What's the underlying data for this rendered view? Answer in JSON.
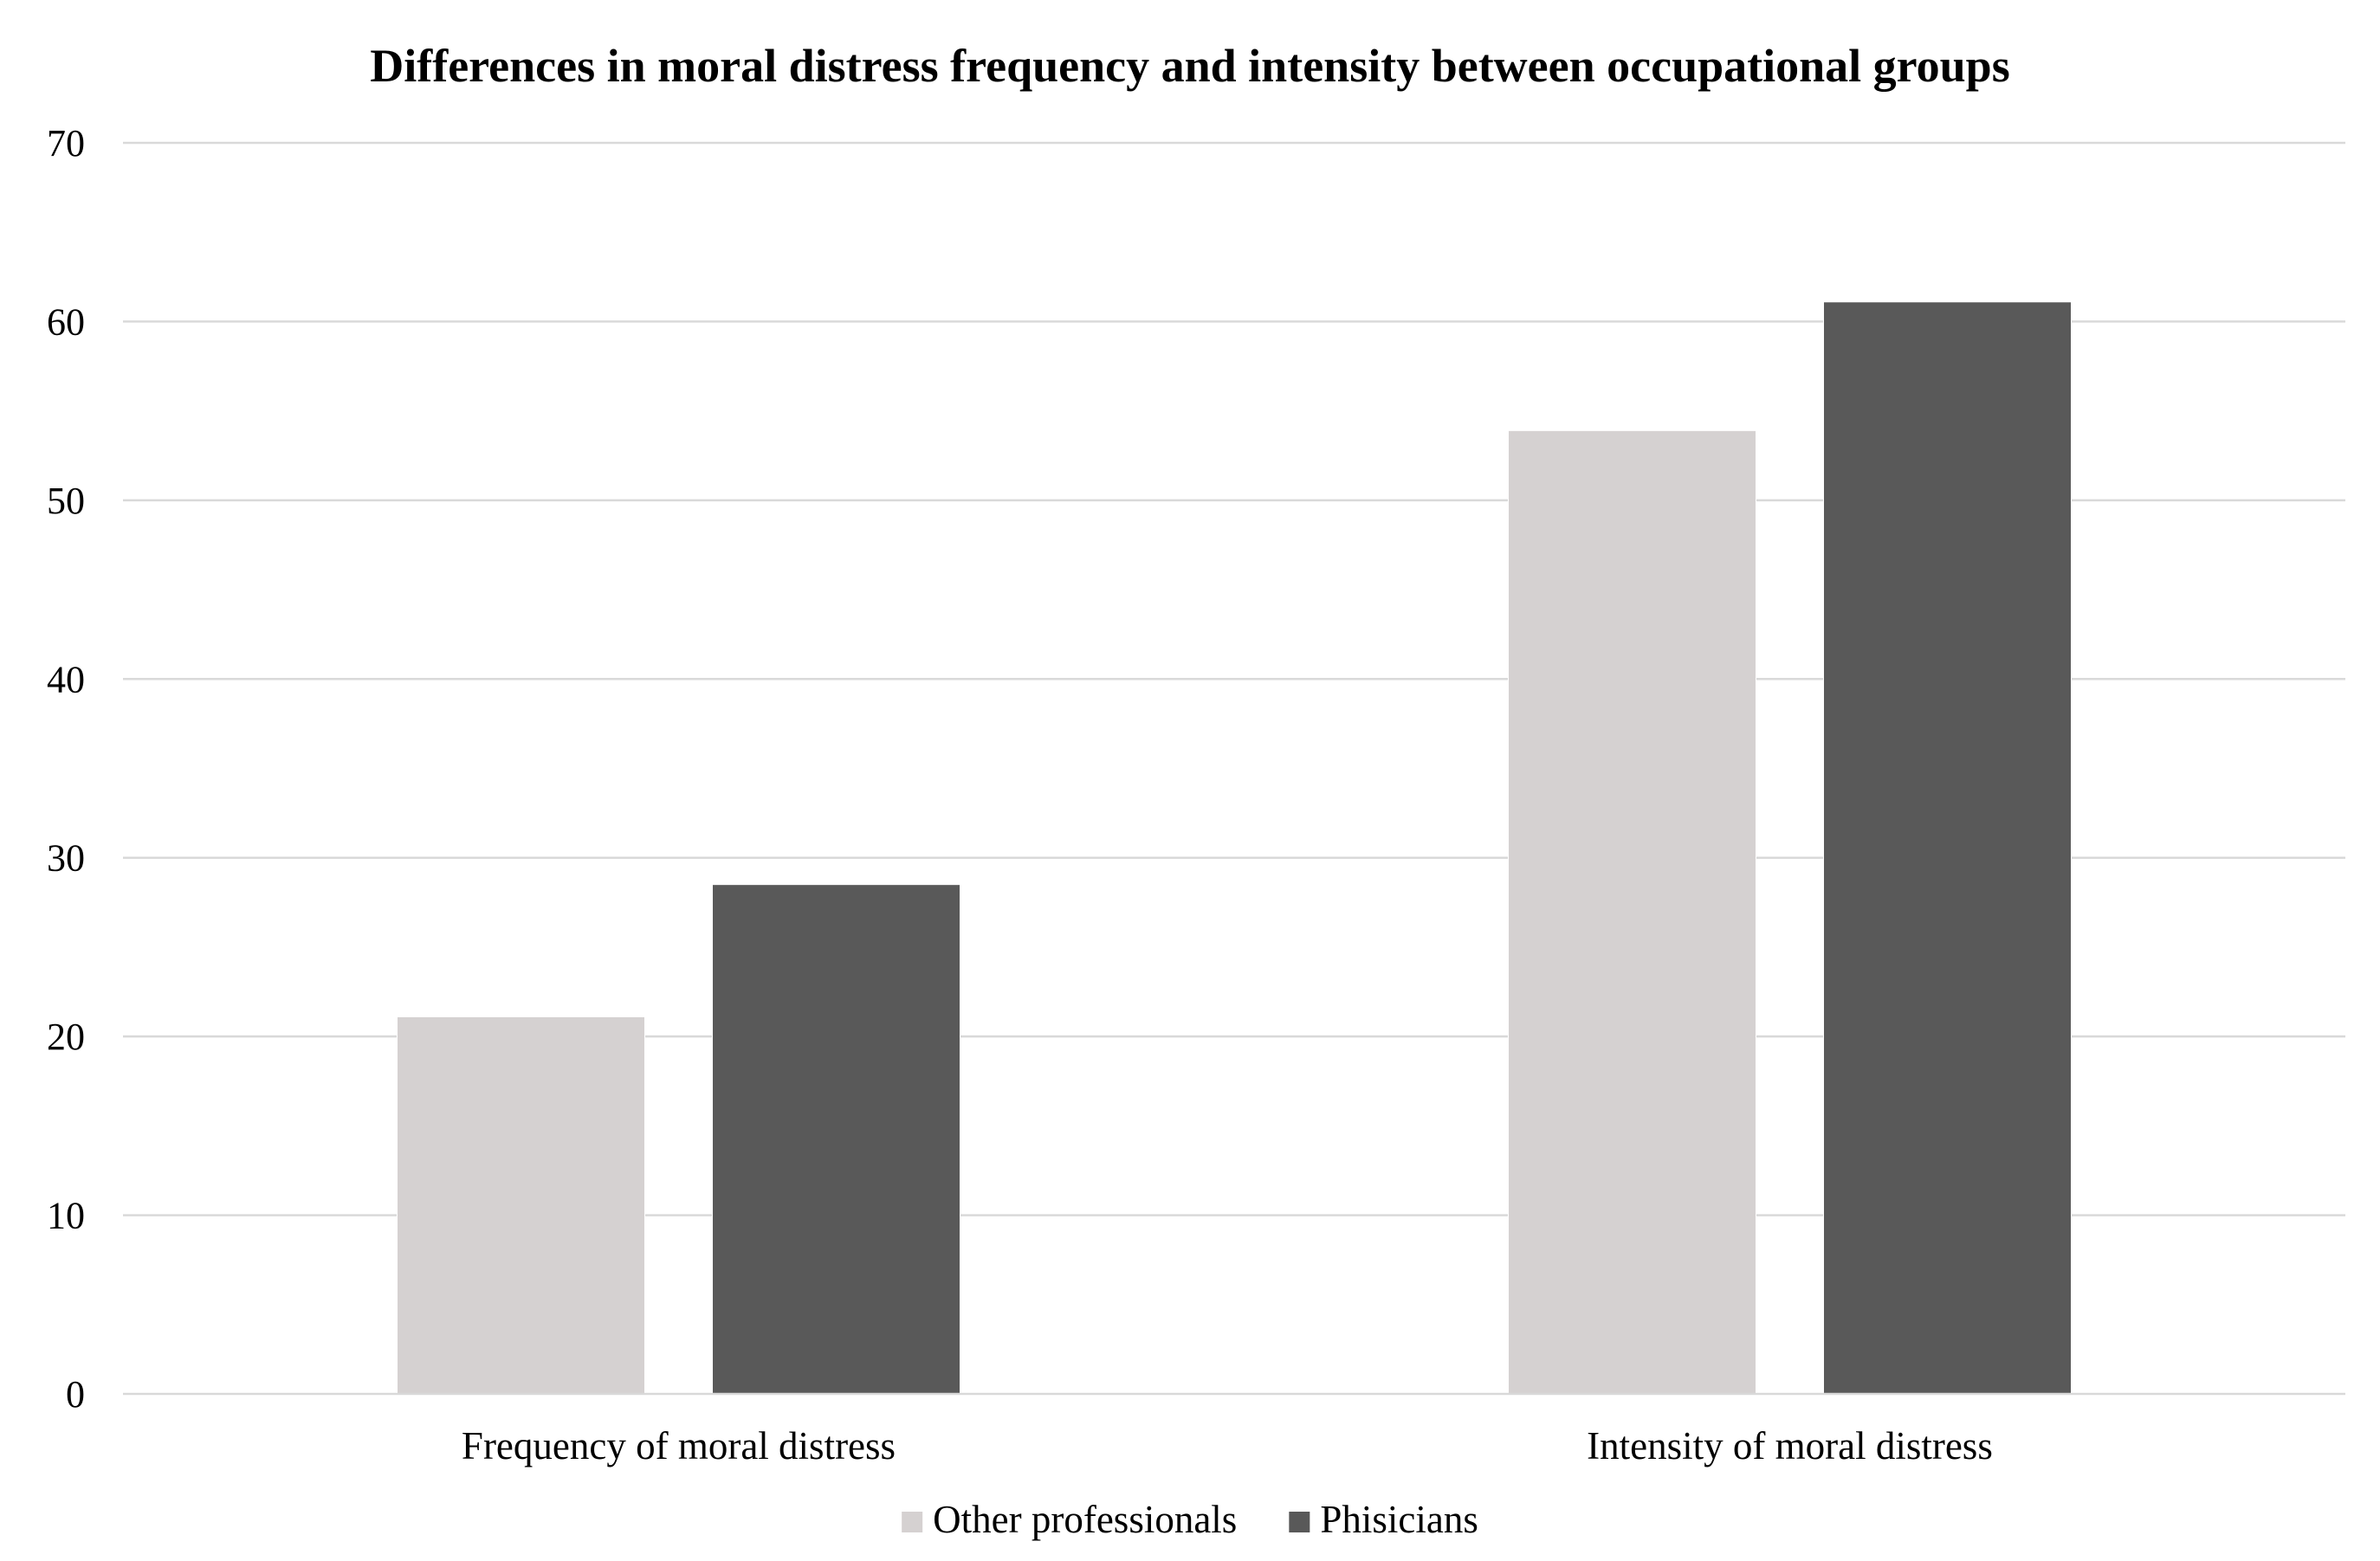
{
  "chart_data": {
    "type": "bar",
    "title": "Differences in moral distress frequency and intensity between occupational groups",
    "xlabel": "",
    "ylabel": "",
    "categories": [
      "Frequency of moral distress",
      "Intensity of moral distress"
    ],
    "series": [
      {
        "name": "Other professionals",
        "values": [
          21.1,
          53.9
        ],
        "color": "#d5d1d1"
      },
      {
        "name": "Phisicians",
        "values": [
          28.5,
          61.1
        ],
        "color": "#595959"
      }
    ],
    "ylim": [
      0,
      70
    ],
    "yticks": [
      0,
      10,
      20,
      30,
      40,
      50,
      60,
      70
    ],
    "grid": true,
    "legend": "bottom-center"
  }
}
